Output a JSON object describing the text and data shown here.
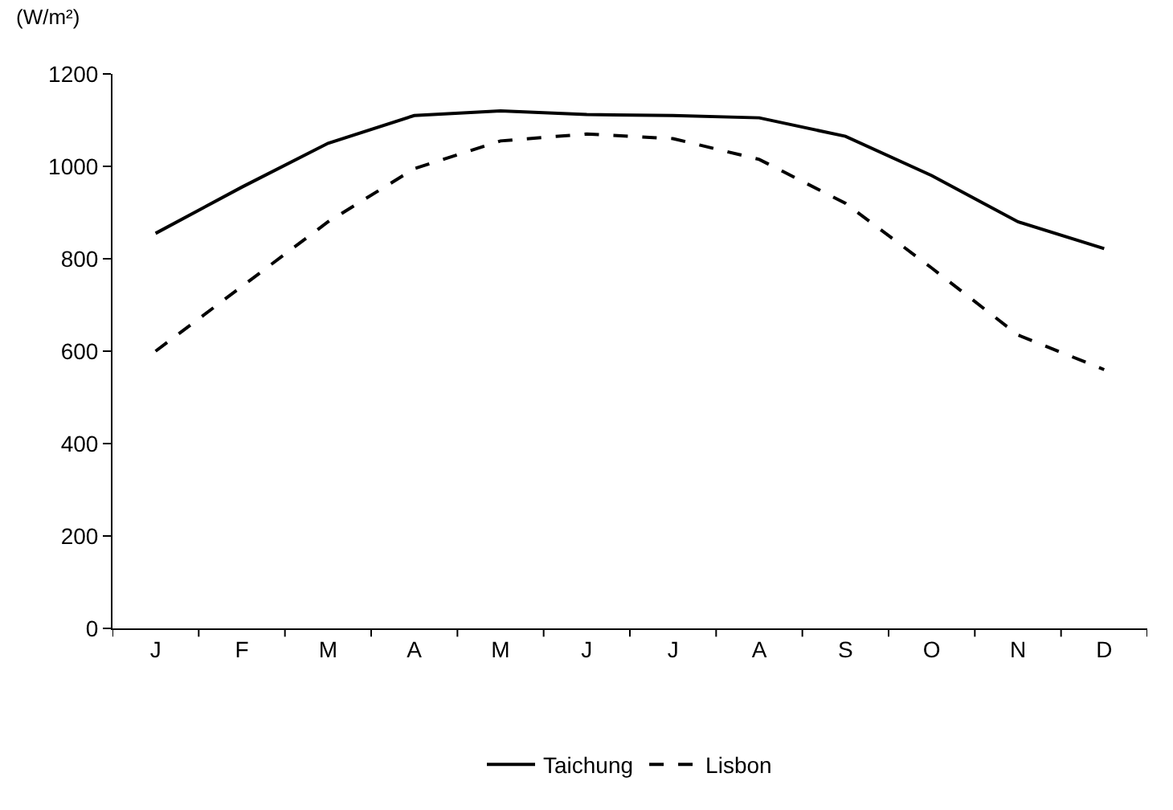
{
  "chart_data": {
    "type": "line",
    "ylabel": "(W/m²)",
    "categories": [
      "J",
      "F",
      "M",
      "A",
      "M",
      "J",
      "J",
      "A",
      "S",
      "O",
      "N",
      "D"
    ],
    "series": [
      {
        "name": "Taichung",
        "color": "#000000",
        "line_style": "solid",
        "values": [
          855,
          955,
          1050,
          1110,
          1120,
          1112,
          1110,
          1105,
          1065,
          980,
          880,
          822
        ]
      },
      {
        "name": "Lisbon",
        "color": "#000000",
        "line_style": "dashed",
        "values": [
          600,
          740,
          880,
          995,
          1055,
          1070,
          1060,
          1015,
          920,
          780,
          635,
          560
        ]
      }
    ],
    "ylim": [
      0,
      1200
    ],
    "yticks": [
      0,
      200,
      400,
      600,
      800,
      1000,
      1200
    ],
    "grid": false,
    "legend": "bottom",
    "marker": "none"
  }
}
